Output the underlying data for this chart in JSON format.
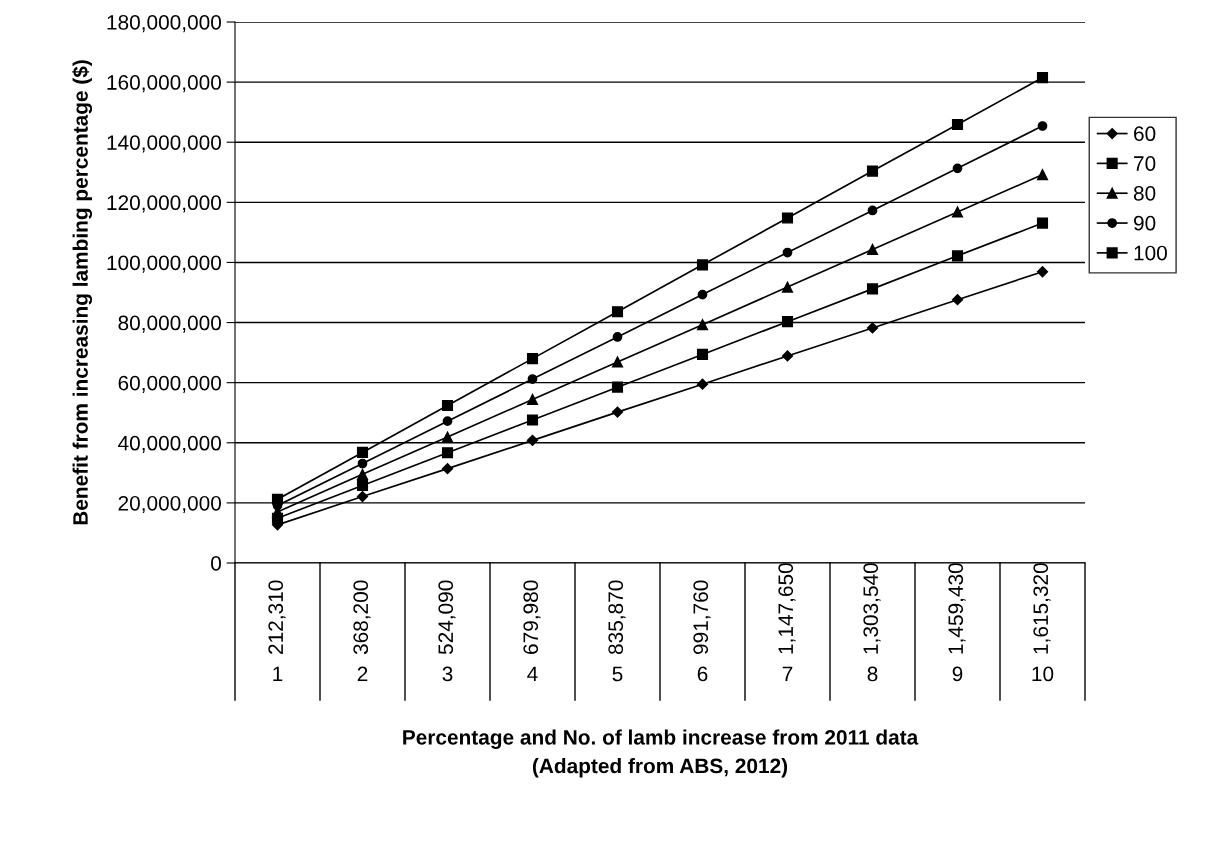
{
  "chart_data": {
    "type": "line",
    "xlabel": "Percentage and No. of lamb increase from 2011 data\n(Adapted from ABS, 2012)",
    "ylabel": "Benefit from increasing lambing percentage ($)",
    "categories": [
      "1",
      "2",
      "3",
      "4",
      "5",
      "6",
      "7",
      "8",
      "9",
      "10"
    ],
    "series": [
      {
        "name": "60",
        "color": "#000000",
        "marker": "diamond",
        "values": [
          12700000,
          22100000,
          31400000,
          40800000,
          50200000,
          59500000,
          68900000,
          78200000,
          87600000,
          96900000
        ]
      },
      {
        "name": "70",
        "color": "#000000",
        "marker": "square",
        "values": [
          14900000,
          25800000,
          36700000,
          47600000,
          58500000,
          69400000,
          80300000,
          91200000,
          102200000,
          113100000
        ]
      },
      {
        "name": "80",
        "color": "#000000",
        "marker": "triangle",
        "values": [
          17000000,
          29500000,
          41900000,
          54400000,
          66900000,
          79300000,
          91800000,
          104300000,
          116800000,
          129200000
        ]
      },
      {
        "name": "90",
        "color": "#000000",
        "marker": "circle",
        "values": [
          19100000,
          33100000,
          47200000,
          61200000,
          75200000,
          89300000,
          103300000,
          117300000,
          131300000,
          145400000
        ]
      },
      {
        "name": "100",
        "color": "#000000",
        "marker": "square",
        "values": [
          21200000,
          36800000,
          52400000,
          68000000,
          83600000,
          99200000,
          114800000,
          130400000,
          145900000,
          161500000
        ]
      }
    ],
    "ylim": [
      0,
      180000000
    ],
    "yticks": [
      {
        "value": 0,
        "label": "0"
      },
      {
        "value": 20000000,
        "label": "20,000,000"
      },
      {
        "value": 40000000,
        "label": "40,000,000"
      },
      {
        "value": 60000000,
        "label": "60,000,000"
      },
      {
        "value": 80000000,
        "label": "80,000,000"
      },
      {
        "value": 100000000,
        "label": "100,000,000"
      },
      {
        "value": 120000000,
        "label": "120,000,000"
      },
      {
        "value": 140000000,
        "label": "140,000,000"
      },
      {
        "value": 160000000,
        "label": "160,000,000"
      },
      {
        "value": 180000000,
        "label": "180,000,000"
      }
    ],
    "grid": "y",
    "legend": "right",
    "line_style": "solid",
    "annotations": [
      "212,310",
      "368,200",
      "524,090",
      "679,980",
      "835,870",
      "991,760",
      "1,147,650",
      "1,303,540",
      "1,459,430",
      "1,615,320"
    ]
  }
}
